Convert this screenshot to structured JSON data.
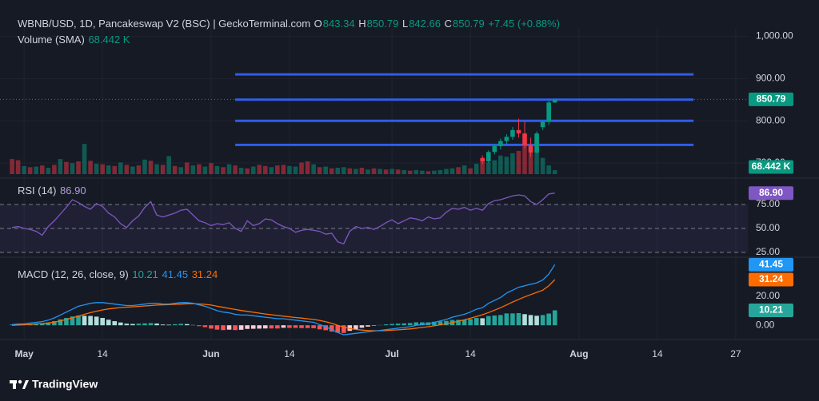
{
  "chart_data": {
    "type": "financial",
    "title": "WBNB/USD, 1D, Pancakeswap V2 (BSC) | GeckoTerminal.com",
    "xlim": [
      "04-27",
      "08-29"
    ],
    "xticks": [
      {
        "value": "05-01",
        "label": "May"
      },
      {
        "value": "05-14",
        "label": "14"
      },
      {
        "value": "06-01",
        "label": "Jun"
      },
      {
        "value": "06-14",
        "label": "14"
      },
      {
        "value": "07-01",
        "label": "Jul"
      },
      {
        "value": "07-14",
        "label": "14"
      },
      {
        "value": "08-01",
        "label": "Aug"
      },
      {
        "value": "08-14",
        "label": "14"
      },
      {
        "value": "08-27",
        "label": "27"
      }
    ],
    "grid": true,
    "x": [
      "04-29",
      "04-30",
      "05-01",
      "05-02",
      "05-03",
      "05-04",
      "05-05",
      "05-06",
      "05-07",
      "05-08",
      "05-09",
      "05-10",
      "05-11",
      "05-12",
      "05-13",
      "05-14",
      "05-15",
      "05-16",
      "05-17",
      "05-18",
      "05-19",
      "05-20",
      "05-21",
      "05-22",
      "05-23",
      "05-24",
      "05-25",
      "05-26",
      "05-27",
      "05-28",
      "05-29",
      "05-30",
      "05-31",
      "06-01",
      "06-02",
      "06-03",
      "06-04",
      "06-05",
      "06-06",
      "06-07",
      "06-08",
      "06-09",
      "06-10",
      "06-11",
      "06-12",
      "06-13",
      "06-14",
      "06-15",
      "06-16",
      "06-17",
      "06-18",
      "06-19",
      "06-20",
      "06-21",
      "06-22",
      "06-23",
      "06-24",
      "06-25",
      "06-26",
      "06-27",
      "06-28",
      "06-29",
      "06-30",
      "07-01",
      "07-02",
      "07-03",
      "07-04",
      "07-05",
      "07-06",
      "07-07",
      "07-08",
      "07-09",
      "07-10",
      "07-11",
      "07-12",
      "07-13",
      "07-14",
      "07-15",
      "07-16",
      "07-17",
      "07-18",
      "07-19",
      "07-20",
      "07-21",
      "07-22",
      "07-23",
      "07-24",
      "07-25",
      "07-26",
      "07-27",
      "07-28"
    ],
    "price": {
      "ohlc_letters": [
        "O",
        "H",
        "L",
        "C"
      ],
      "change_label": "+7.45 (+0.88%)",
      "x": [
        "07-16",
        "07-17",
        "07-18",
        "07-19",
        "07-20",
        "07-21",
        "07-22",
        "07-23",
        "07-24",
        "07-25",
        "07-26",
        "07-27",
        "07-28"
      ],
      "open": [
        712,
        704,
        726,
        740,
        752,
        762,
        778,
        770,
        742,
        725,
        785,
        798,
        843.34
      ],
      "high": [
        718,
        730,
        745,
        758,
        768,
        785,
        805,
        798,
        760,
        775,
        800,
        848,
        850.79
      ],
      "low": [
        698,
        700,
        720,
        732,
        745,
        755,
        760,
        735,
        715,
        722,
        778,
        790,
        842.66
      ],
      "close": [
        704,
        726,
        740,
        752,
        762,
        778,
        770,
        742,
        725,
        770,
        798,
        843.34,
        850.79
      ],
      "up_color": "#089981",
      "down_color": "#f23645",
      "ylim": [
        666,
        1020
      ],
      "yticks": [
        {
          "value": 1000,
          "label": "1,000.00"
        },
        {
          "value": 900,
          "label": "900.00"
        },
        {
          "value": 800,
          "label": "800.00"
        },
        {
          "value": 700,
          "label": "700.00"
        }
      ],
      "levels": [
        910,
        850,
        800,
        743
      ],
      "level_x": [
        "06-05",
        "08-20"
      ],
      "level_color": "#2f5ce8"
    },
    "volume": {
      "name": "Volume (SMA)",
      "current_label": "68.442 K",
      "values": [
        260,
        240,
        140,
        120,
        130,
        150,
        110,
        160,
        260,
        210,
        190,
        220,
        520,
        230,
        180,
        170,
        150,
        140,
        200,
        160,
        130,
        150,
        250,
        230,
        170,
        160,
        310,
        140,
        120,
        200,
        150,
        170,
        130,
        190,
        140,
        120,
        170,
        150,
        110,
        100,
        130,
        160,
        140,
        120,
        150,
        160,
        140,
        130,
        200,
        220,
        170,
        120,
        130,
        100,
        110,
        120,
        100,
        90,
        110,
        80,
        100,
        90,
        80,
        90,
        80,
        70,
        60,
        70,
        60,
        50,
        60,
        70,
        90,
        100,
        120,
        150,
        100,
        180,
        230,
        200,
        240,
        320,
        300,
        360,
        400,
        480,
        460,
        380,
        280,
        150,
        68.442
      ],
      "up": [
        false,
        false,
        true,
        false,
        true,
        false,
        true,
        false,
        true,
        false,
        true,
        false,
        true,
        false,
        true,
        false,
        true,
        false,
        true,
        false,
        true,
        false,
        true,
        false,
        true,
        false,
        true,
        false,
        true,
        false,
        true,
        false,
        true,
        false,
        true,
        false,
        true,
        false,
        true,
        false,
        true,
        false,
        false,
        true,
        false,
        false,
        true,
        true,
        false,
        false,
        true,
        false,
        true,
        false,
        true,
        true,
        false,
        true,
        false,
        true,
        false,
        true,
        false,
        true,
        false,
        true,
        false,
        true,
        true,
        false,
        true,
        true,
        true,
        true,
        false,
        true,
        false,
        true,
        false,
        true,
        true,
        true,
        true,
        true,
        false,
        false,
        false,
        true,
        true,
        true,
        true
      ],
      "ylim": [
        0,
        1100
      ],
      "up_color": "rgba(8,153,129,0.5)",
      "down_color": "rgba(242,54,69,0.5)"
    },
    "rsi": {
      "name": "RSI (14)",
      "current_label": "86.90",
      "color": "#7e57c2",
      "values": [
        51,
        52,
        50,
        49,
        47,
        43,
        52,
        58,
        65,
        72,
        80,
        77,
        73,
        70,
        76,
        73,
        66,
        62,
        55,
        51,
        58,
        63,
        72,
        78,
        64,
        62,
        64,
        66,
        69,
        70,
        64,
        58,
        56,
        53,
        55,
        54,
        56,
        50,
        47,
        58,
        53,
        55,
        60,
        59,
        55,
        52,
        50,
        46,
        48,
        49,
        48,
        47,
        44,
        45,
        36,
        34,
        47,
        52,
        50,
        51,
        49,
        52,
        56,
        59,
        55,
        58,
        61,
        60,
        58,
        62,
        60,
        61,
        67,
        71,
        70,
        72,
        69,
        71,
        69,
        76,
        79,
        80,
        82,
        84,
        85,
        84,
        78,
        75,
        80,
        86,
        86.9
      ],
      "ylim": [
        20,
        100
      ],
      "yticks": [
        {
          "value": 75,
          "label": "75.00"
        },
        {
          "value": 50,
          "label": "50.00"
        },
        {
          "value": 25,
          "label": "25.00"
        }
      ],
      "band": [
        25,
        75
      ]
    },
    "macd": {
      "name": "MACD (12, 26, close, 9)",
      "macd": [
        0.5,
        0.8,
        1,
        1.5,
        2,
        2.5,
        3.5,
        5,
        7,
        9,
        11,
        13,
        14,
        15,
        15.5,
        15.5,
        15,
        14.5,
        14,
        13.5,
        13.5,
        14,
        14.5,
        15,
        15,
        14.5,
        14.5,
        15,
        15.5,
        15.5,
        15,
        14,
        13,
        11.5,
        10,
        9,
        8.5,
        7.5,
        7,
        7,
        6.5,
        6,
        5.5,
        5,
        4.5,
        4.5,
        4,
        3.5,
        3,
        2.5,
        2,
        0.5,
        -1,
        -3,
        -5,
        -6.5,
        -6,
        -5.5,
        -5,
        -4.5,
        -4,
        -3.5,
        -3,
        -2.5,
        -2,
        -1.5,
        -1,
        0,
        0.5,
        1,
        2,
        3,
        4,
        5.5,
        6.5,
        7.5,
        9,
        11,
        12,
        15,
        17,
        19,
        22,
        24,
        26,
        27,
        28,
        29,
        31,
        35,
        41.45
      ],
      "signal": [
        0,
        0.2,
        0.4,
        0.6,
        0.9,
        1.2,
        1.6,
        2.2,
        3,
        4,
        5,
        6.3,
        7.5,
        8.6,
        9.6,
        10.5,
        11.2,
        11.7,
        12.1,
        12.4,
        12.6,
        12.9,
        13.2,
        13.5,
        13.8,
        14,
        14.1,
        14.3,
        14.5,
        14.7,
        14.8,
        14.6,
        14.3,
        13.8,
        13,
        12.3,
        11.5,
        10.8,
        10.1,
        9.5,
        8.9,
        8.3,
        7.7,
        7.2,
        6.7,
        6.2,
        5.8,
        5.3,
        4.9,
        4.4,
        4,
        3.3,
        2.4,
        1.3,
        0,
        -1.3,
        -2.2,
        -2.9,
        -3.3,
        -3.6,
        -3.7,
        -3.7,
        -3.6,
        -3.4,
        -3.1,
        -2.8,
        -2.5,
        -2,
        -1.5,
        -1,
        -0.4,
        0.3,
        1,
        1.9,
        2.8,
        3.7,
        4.8,
        6,
        7.2,
        8.7,
        10.3,
        12,
        13.9,
        15.9,
        17.7,
        19.4,
        21,
        22.5,
        24,
        27,
        31.24
      ],
      "histogram": [
        0.5,
        0.6,
        0.6,
        0.9,
        1.1,
        1.3,
        1.9,
        2.8,
        4,
        5,
        6,
        6.7,
        6.5,
        6.4,
        5.9,
        5,
        3.8,
        2.8,
        1.9,
        1.1,
        0.9,
        1.1,
        1.3,
        1.5,
        1.2,
        0.5,
        0.4,
        0.7,
        1,
        0.8,
        0.2,
        -0.6,
        -1.3,
        -2.3,
        -3,
        -3.3,
        -3,
        -3.3,
        -3.1,
        -2.5,
        -2.4,
        -2.3,
        -2.2,
        -2.2,
        -2.2,
        -1.7,
        -1.8,
        -1.8,
        -1.9,
        -1.9,
        -2,
        -2.8,
        -3.4,
        -4.3,
        -5,
        -5.2,
        -3.8,
        -2.6,
        -1.7,
        -0.9,
        -0.3,
        0.2,
        0.6,
        0.9,
        1.1,
        1.3,
        1.5,
        2,
        2,
        2,
        2.4,
        2.7,
        3,
        3.6,
        3.7,
        3.8,
        4.2,
        5,
        4.8,
        6.3,
        6.7,
        7,
        8.1,
        8.1,
        8.3,
        7.6,
        7,
        6.5,
        7,
        8,
        10.21
      ],
      "macd_color": "#2196f3",
      "signal_color": "#ff6d00",
      "hist_colors": [
        "#26a69a",
        "#b2dfdb",
        "#ff5252",
        "#ffcdd2"
      ],
      "ylim": [
        -7,
        46
      ],
      "yticks": [
        {
          "value": 20,
          "label": "20.00"
        },
        {
          "value": 0,
          "label": "0.00"
        }
      ]
    }
  },
  "brand": "TradingView"
}
